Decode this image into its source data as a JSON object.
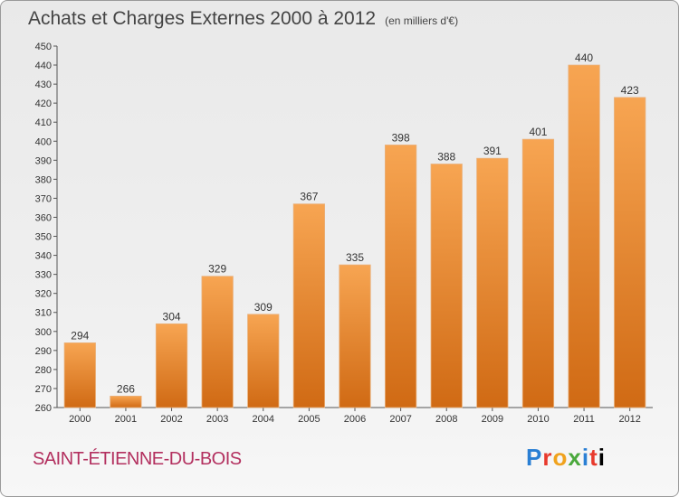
{
  "header": {
    "title": "Achats et Charges Externes 2000 à 2012",
    "subtitle": "(en milliers d'€)"
  },
  "footer": {
    "city": "SAINT-ÉTIENNE-DU-BOIS",
    "logo": "Proxiti"
  },
  "colors": {
    "bar_top": "#f7a552",
    "bar_bottom": "#d06a14",
    "city": "#b3305f"
  },
  "chart_data": {
    "type": "bar",
    "categories": [
      "2000",
      "2001",
      "2002",
      "2003",
      "2004",
      "2005",
      "2006",
      "2007",
      "2008",
      "2009",
      "2010",
      "2011",
      "2012"
    ],
    "values": [
      294,
      266,
      304,
      329,
      309,
      367,
      335,
      398,
      388,
      391,
      401,
      440,
      423
    ],
    "title": "Achats et Charges Externes 2000 à 2012",
    "xlabel": "",
    "ylabel": "",
    "ylim": [
      260,
      450
    ],
    "ytick_step": 10,
    "grid": false,
    "data_labels": true
  }
}
